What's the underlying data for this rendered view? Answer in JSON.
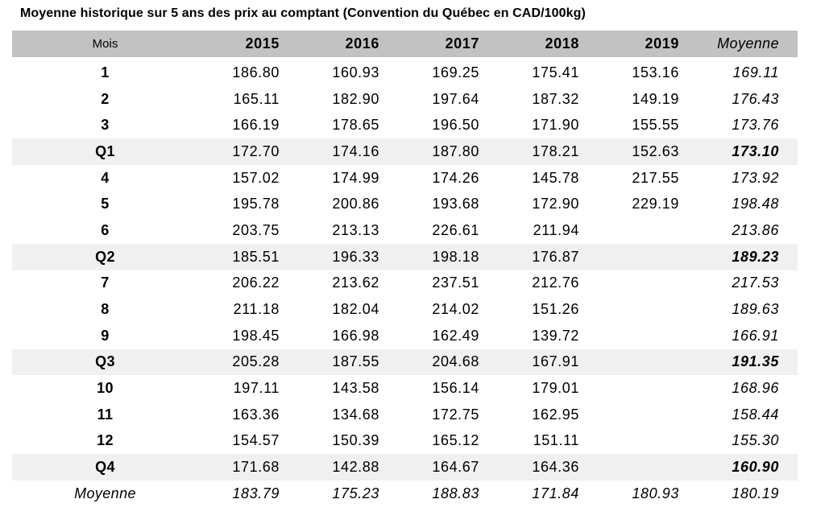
{
  "colors": {
    "header_bg": "#c2c2c2",
    "quarter_bg": "#f0f0f0",
    "header_rule": "#d4d4d4",
    "text": "#000000"
  },
  "chart_data": {
    "type": "table",
    "title": "Moyenne historique sur 5 ans des prix au comptant (Convention du Québec en CAD/100kg)",
    "columns": [
      "Mois",
      "2015",
      "2016",
      "2017",
      "2018",
      "2019",
      "Moyenne"
    ],
    "rows": [
      {
        "label": "1",
        "type": "month",
        "values": [
          "186.80",
          "160.93",
          "169.25",
          "175.41",
          "153.16"
        ],
        "moyenne": "169.11"
      },
      {
        "label": "2",
        "type": "month",
        "values": [
          "165.11",
          "182.90",
          "197.64",
          "187.32",
          "149.19"
        ],
        "moyenne": "176.43"
      },
      {
        "label": "3",
        "type": "month",
        "values": [
          "166.19",
          "178.65",
          "196.50",
          "171.90",
          "155.55"
        ],
        "moyenne": "173.76"
      },
      {
        "label": "Q1",
        "type": "quarter",
        "values": [
          "172.70",
          "174.16",
          "187.80",
          "178.21",
          "152.63"
        ],
        "moyenne": "173.10"
      },
      {
        "label": "4",
        "type": "month",
        "values": [
          "157.02",
          "174.99",
          "174.26",
          "145.78",
          "217.55"
        ],
        "moyenne": "173.92"
      },
      {
        "label": "5",
        "type": "month",
        "values": [
          "195.78",
          "200.86",
          "193.68",
          "172.90",
          "229.19"
        ],
        "moyenne": "198.48"
      },
      {
        "label": "6",
        "type": "month",
        "values": [
          "203.75",
          "213.13",
          "226.61",
          "211.94",
          ""
        ],
        "moyenne": "213.86"
      },
      {
        "label": "Q2",
        "type": "quarter",
        "values": [
          "185.51",
          "196.33",
          "198.18",
          "176.87",
          ""
        ],
        "moyenne": "189.23"
      },
      {
        "label": "7",
        "type": "month",
        "values": [
          "206.22",
          "213.62",
          "237.51",
          "212.76",
          ""
        ],
        "moyenne": "217.53"
      },
      {
        "label": "8",
        "type": "month",
        "values": [
          "211.18",
          "182.04",
          "214.02",
          "151.26",
          ""
        ],
        "moyenne": "189.63"
      },
      {
        "label": "9",
        "type": "month",
        "values": [
          "198.45",
          "166.98",
          "162.49",
          "139.72",
          ""
        ],
        "moyenne": "166.91"
      },
      {
        "label": "Q3",
        "type": "quarter",
        "values": [
          "205.28",
          "187.55",
          "204.68",
          "167.91",
          ""
        ],
        "moyenne": "191.35"
      },
      {
        "label": "10",
        "type": "month",
        "values": [
          "197.11",
          "143.58",
          "156.14",
          "179.01",
          ""
        ],
        "moyenne": "168.96"
      },
      {
        "label": "11",
        "type": "month",
        "values": [
          "163.36",
          "134.68",
          "172.75",
          "162.95",
          ""
        ],
        "moyenne": "158.44"
      },
      {
        "label": "12",
        "type": "month",
        "values": [
          "154.57",
          "150.39",
          "165.12",
          "151.11",
          ""
        ],
        "moyenne": "155.30"
      },
      {
        "label": "Q4",
        "type": "quarter",
        "values": [
          "171.68",
          "142.88",
          "164.67",
          "164.36",
          ""
        ],
        "moyenne": "160.90"
      },
      {
        "label": "Moyenne",
        "type": "average",
        "values": [
          "183.79",
          "175.23",
          "188.83",
          "171.84",
          "180.93"
        ],
        "moyenne": "180.19"
      }
    ]
  }
}
